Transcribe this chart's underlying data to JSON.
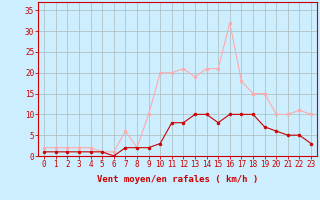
{
  "hours": [
    0,
    1,
    2,
    3,
    4,
    5,
    6,
    7,
    8,
    9,
    10,
    11,
    12,
    13,
    14,
    15,
    16,
    17,
    18,
    19,
    20,
    21,
    22,
    23
  ],
  "avg_wind": [
    1,
    1,
    1,
    1,
    1,
    1,
    0,
    2,
    2,
    2,
    3,
    8,
    8,
    10,
    10,
    8,
    10,
    10,
    10,
    7,
    6,
    5,
    5,
    3
  ],
  "gust_wind": [
    2,
    2,
    2,
    2,
    2,
    1,
    1,
    6,
    2,
    10,
    20,
    20,
    21,
    19,
    21,
    21,
    32,
    18,
    15,
    15,
    10,
    10,
    11,
    10
  ],
  "line_avg_color": "#cc0000",
  "line_gust_color": "#ffaaaa",
  "marker_avg_color": "#cc0000",
  "marker_gust_color": "#ffaaaa",
  "bg_color": "#cceeff",
  "grid_color": "#aabbbb",
  "axis_label_color": "#cc0000",
  "tick_color": "#cc0000",
  "xlabel": "Vent moyen/en rafales ( km/h )",
  "ylim": [
    0,
    37
  ],
  "yticks": [
    0,
    5,
    10,
    15,
    20,
    25,
    30,
    35
  ],
  "tick_fontsize": 5.5,
  "label_fontsize": 6.5
}
